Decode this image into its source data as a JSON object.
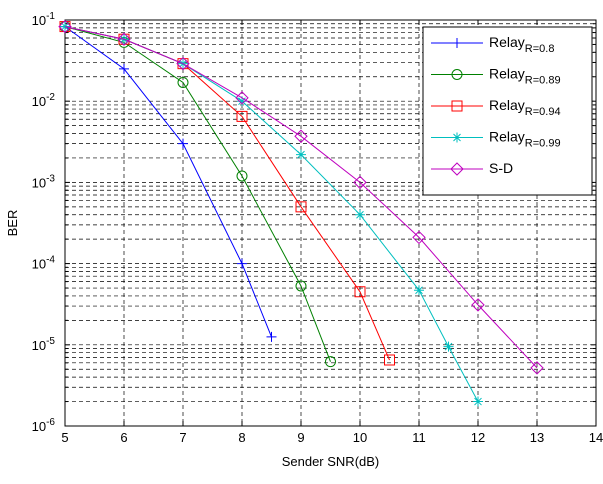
{
  "chart_data": {
    "type": "line",
    "xlabel": "Sender SNR(dB)",
    "ylabel": "BER",
    "xlim": [
      5,
      14
    ],
    "ylim": [
      1e-06,
      0.1
    ],
    "yscale": "log",
    "x_ticks": [
      "5",
      "6",
      "7",
      "8",
      "9",
      "10",
      "11",
      "12",
      "13",
      "14"
    ],
    "y_ticks": [
      {
        "base": "10",
        "exp": "-1"
      },
      {
        "base": "10",
        "exp": "-2"
      },
      {
        "base": "10",
        "exp": "-3"
      },
      {
        "base": "10",
        "exp": "-4"
      },
      {
        "base": "10",
        "exp": "-5"
      },
      {
        "base": "10",
        "exp": "-6"
      }
    ],
    "grid": true,
    "legend_position": "top-right",
    "series": [
      {
        "name": "Relay",
        "subscript": "R=0.8",
        "color": "#0000ff",
        "marker": "plus",
        "x": [
          5,
          6,
          7,
          8,
          8.5
        ],
        "y": [
          0.083,
          0.025,
          0.003,
          0.0001,
          1.25e-05
        ]
      },
      {
        "name": "Relay",
        "subscript": "R=0.89",
        "color": "#008000",
        "marker": "circle",
        "x": [
          5,
          6,
          7,
          8,
          9,
          9.5
        ],
        "y": [
          0.083,
          0.053,
          0.017,
          0.0012,
          5.3e-05,
          6.2e-06
        ]
      },
      {
        "name": "Relay",
        "subscript": "R=0.94",
        "color": "#ff0000",
        "marker": "square",
        "x": [
          5,
          6,
          7,
          8,
          9,
          10,
          10.5
        ],
        "y": [
          0.083,
          0.058,
          0.029,
          0.0065,
          0.0005,
          4.5e-05,
          6.5e-06
        ]
      },
      {
        "name": "Relay",
        "subscript": "R=0.99",
        "color": "#00bfbf",
        "marker": "star",
        "x": [
          5,
          6,
          7,
          8,
          9,
          10,
          11,
          11.5,
          12
        ],
        "y": [
          0.083,
          0.058,
          0.029,
          0.01,
          0.0022,
          0.0004,
          4.7e-05,
          9.5e-06,
          2e-06
        ]
      },
      {
        "name": "S-D",
        "subscript": "",
        "color": "#bf00bf",
        "marker": "diamond",
        "x": [
          5,
          6,
          7,
          8,
          9,
          10,
          11,
          12,
          13
        ],
        "y": [
          0.083,
          0.058,
          0.029,
          0.011,
          0.0037,
          0.001,
          0.00021,
          3.1e-05,
          5.2e-06
        ]
      }
    ]
  }
}
